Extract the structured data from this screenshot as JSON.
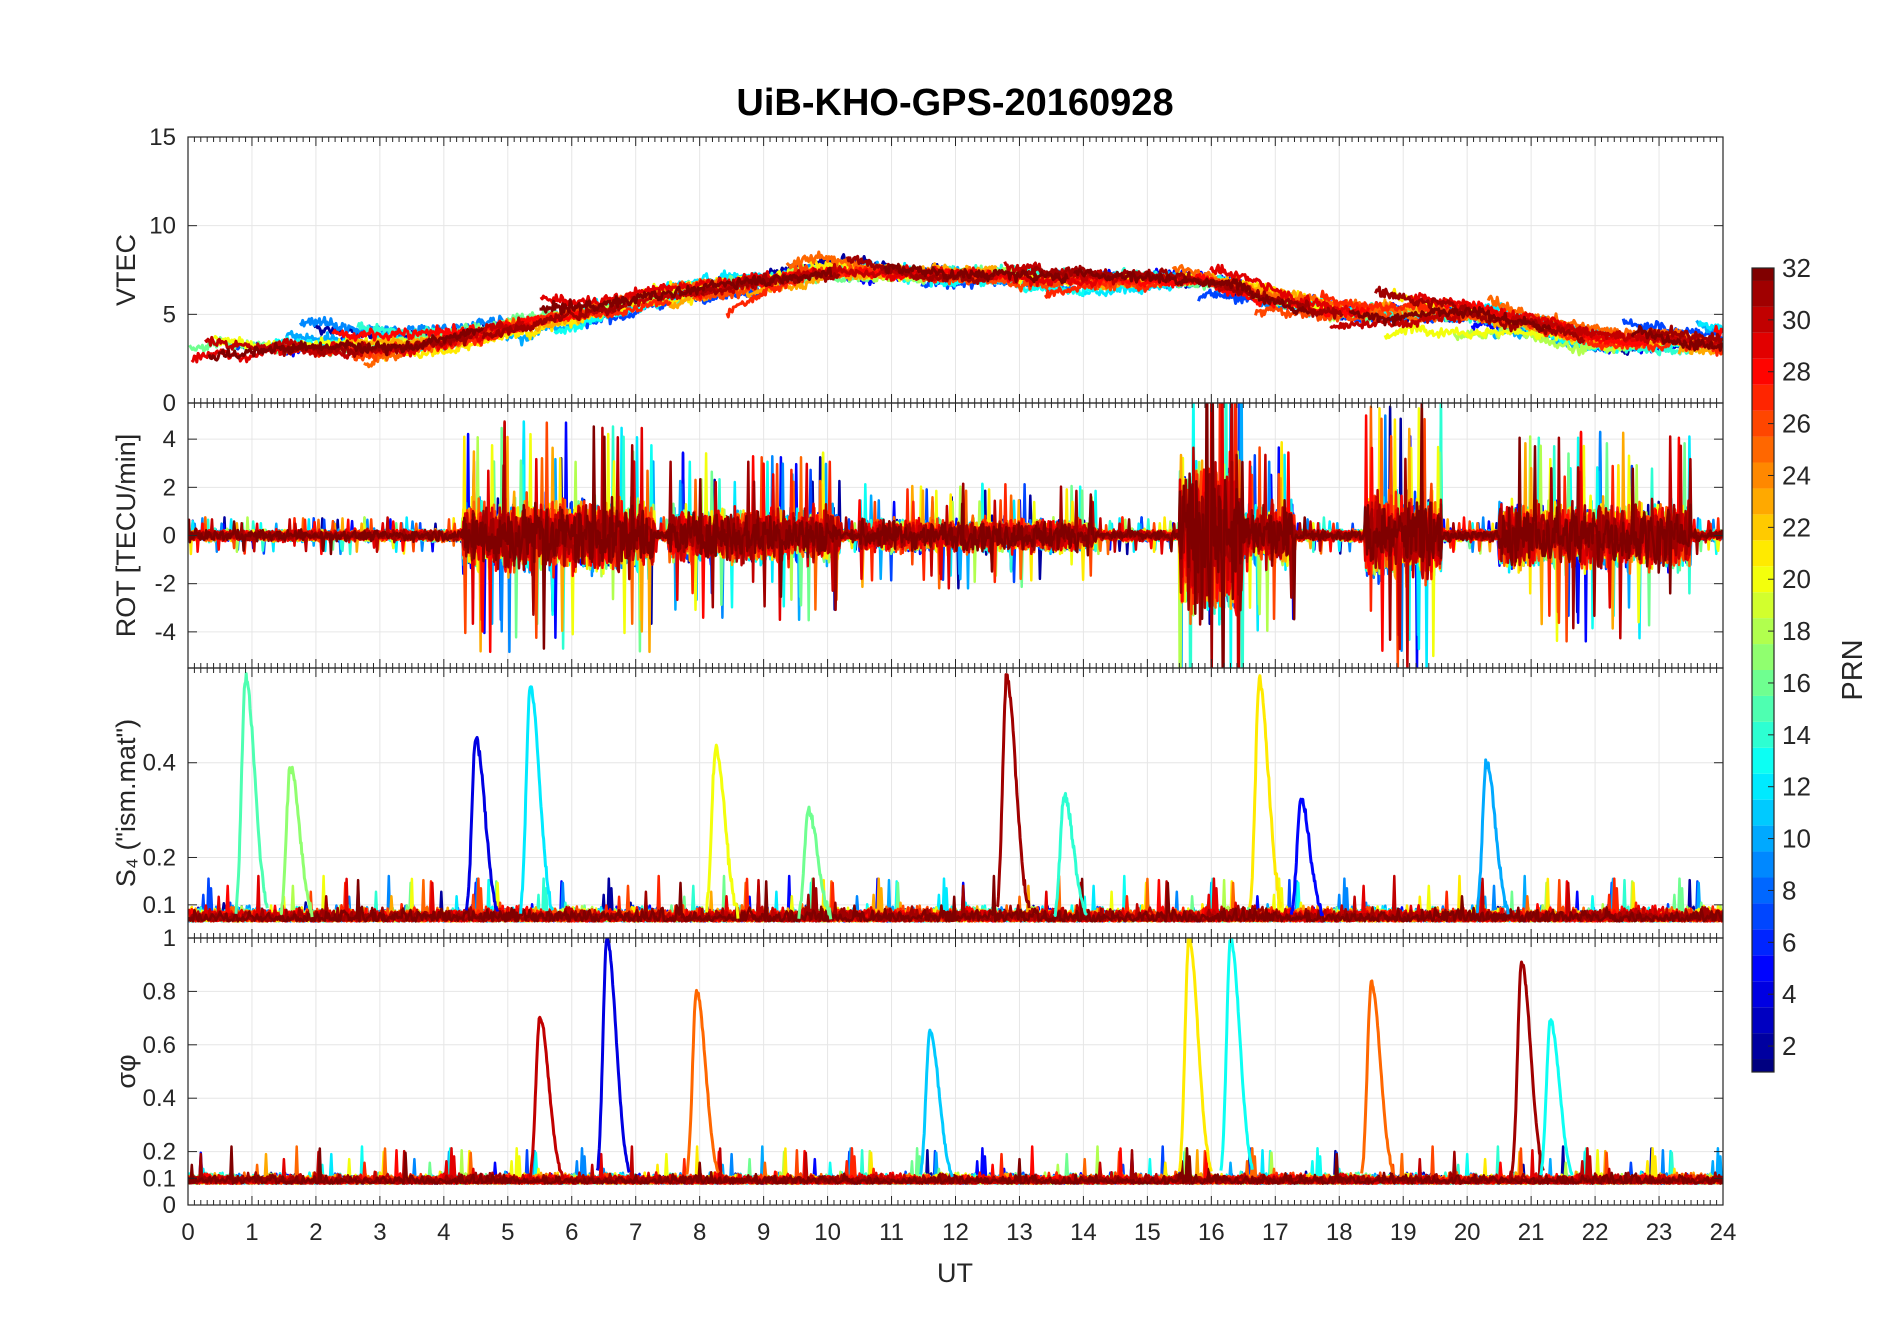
{
  "title": "UiB-KHO-GPS-20160928",
  "chart_data": {
    "type": "line",
    "title": "UiB-KHO-GPS-20160928",
    "x_label": "UT",
    "x_range": [
      0,
      24
    ],
    "x_ticks": [
      "0",
      "1",
      "2",
      "3",
      "4",
      "5",
      "6",
      "7",
      "8",
      "9",
      "10",
      "11",
      "12",
      "13",
      "14",
      "15",
      "16",
      "17",
      "18",
      "19",
      "20",
      "21",
      "22",
      "23",
      "24"
    ],
    "grid": true,
    "colorbar": {
      "label": "PRN",
      "colormap": "jet",
      "range": [
        1,
        32
      ],
      "ticks": [
        "2",
        "4",
        "6",
        "8",
        "10",
        "12",
        "14",
        "16",
        "18",
        "20",
        "22",
        "24",
        "26",
        "28",
        "30",
        "32"
      ]
    },
    "panels": [
      {
        "ylabel": "VTEC",
        "ylim": [
          0,
          15
        ],
        "yticks": [
          "0",
          "5",
          "10",
          "15"
        ],
        "tick_values": [
          0,
          5,
          10,
          15
        ],
        "style": "tec",
        "envelope": [
          [
            0,
            3
          ],
          [
            2,
            3.2
          ],
          [
            4,
            3.6
          ],
          [
            6,
            5
          ],
          [
            8,
            6.5
          ],
          [
            10,
            7.6
          ],
          [
            12,
            7.3
          ],
          [
            14,
            7
          ],
          [
            16,
            7
          ],
          [
            18,
            5.3
          ],
          [
            20,
            5
          ],
          [
            21,
            4.5
          ],
          [
            22,
            3.6
          ],
          [
            24,
            3.5
          ]
        ]
      },
      {
        "ylabel": "ROT [TECU/min]",
        "ylim": [
          -5.5,
          5.5
        ],
        "yticks": [
          "-4",
          "-2",
          "0",
          "2",
          "4"
        ],
        "tick_values": [
          -4,
          -2,
          0,
          2,
          4
        ],
        "style": "rot",
        "bursts": [
          [
            4.3,
            7.3,
            2.2
          ],
          [
            7.5,
            10.2,
            1.6
          ],
          [
            10.5,
            14.2,
            1.0
          ],
          [
            15.5,
            16.5,
            4.8
          ],
          [
            16.5,
            17.3,
            1.8
          ],
          [
            18.4,
            19.6,
            2.6
          ],
          [
            20.5,
            23.5,
            2.0
          ]
        ]
      },
      {
        "ylabel": "S₄ (\"ism.mat\")",
        "ylim": [
          0.03,
          0.6
        ],
        "yticks": [
          "0.1",
          "0.2",
          "0.4"
        ],
        "tick_values": [
          0.1,
          0.2,
          0.4
        ],
        "style": "s4",
        "baseline": 0.065,
        "spikes": [
          [
            0.9,
            0.58,
            15
          ],
          [
            1.6,
            0.39,
            17
          ],
          [
            4.5,
            0.45,
            4
          ],
          [
            5.35,
            0.56,
            12
          ],
          [
            8.25,
            0.43,
            20
          ],
          [
            9.7,
            0.3,
            16
          ],
          [
            12.8,
            0.58,
            31
          ],
          [
            13.7,
            0.33,
            14
          ],
          [
            16.75,
            0.57,
            21
          ],
          [
            17.4,
            0.32,
            5
          ],
          [
            20.3,
            0.4,
            10
          ]
        ]
      },
      {
        "ylabel": "σφ",
        "ylim": [
          0,
          1
        ],
        "yticks": [
          "0",
          "0.1",
          "0.2",
          "0.4",
          "0.6",
          "0.8",
          "1"
        ],
        "tick_values": [
          0,
          0.1,
          0.2,
          0.4,
          0.6,
          0.8,
          1
        ],
        "style": "sigma",
        "baseline": 0.08,
        "spikes": [
          [
            5.5,
            0.7,
            30
          ],
          [
            6.55,
            1.0,
            4
          ],
          [
            7.95,
            0.8,
            25
          ],
          [
            11.6,
            0.65,
            11
          ],
          [
            15.65,
            1.0,
            21
          ],
          [
            16.3,
            1.0,
            13
          ],
          [
            18.5,
            0.83,
            25
          ],
          [
            20.85,
            0.91,
            31
          ],
          [
            21.3,
            0.69,
            13
          ]
        ]
      }
    ]
  }
}
